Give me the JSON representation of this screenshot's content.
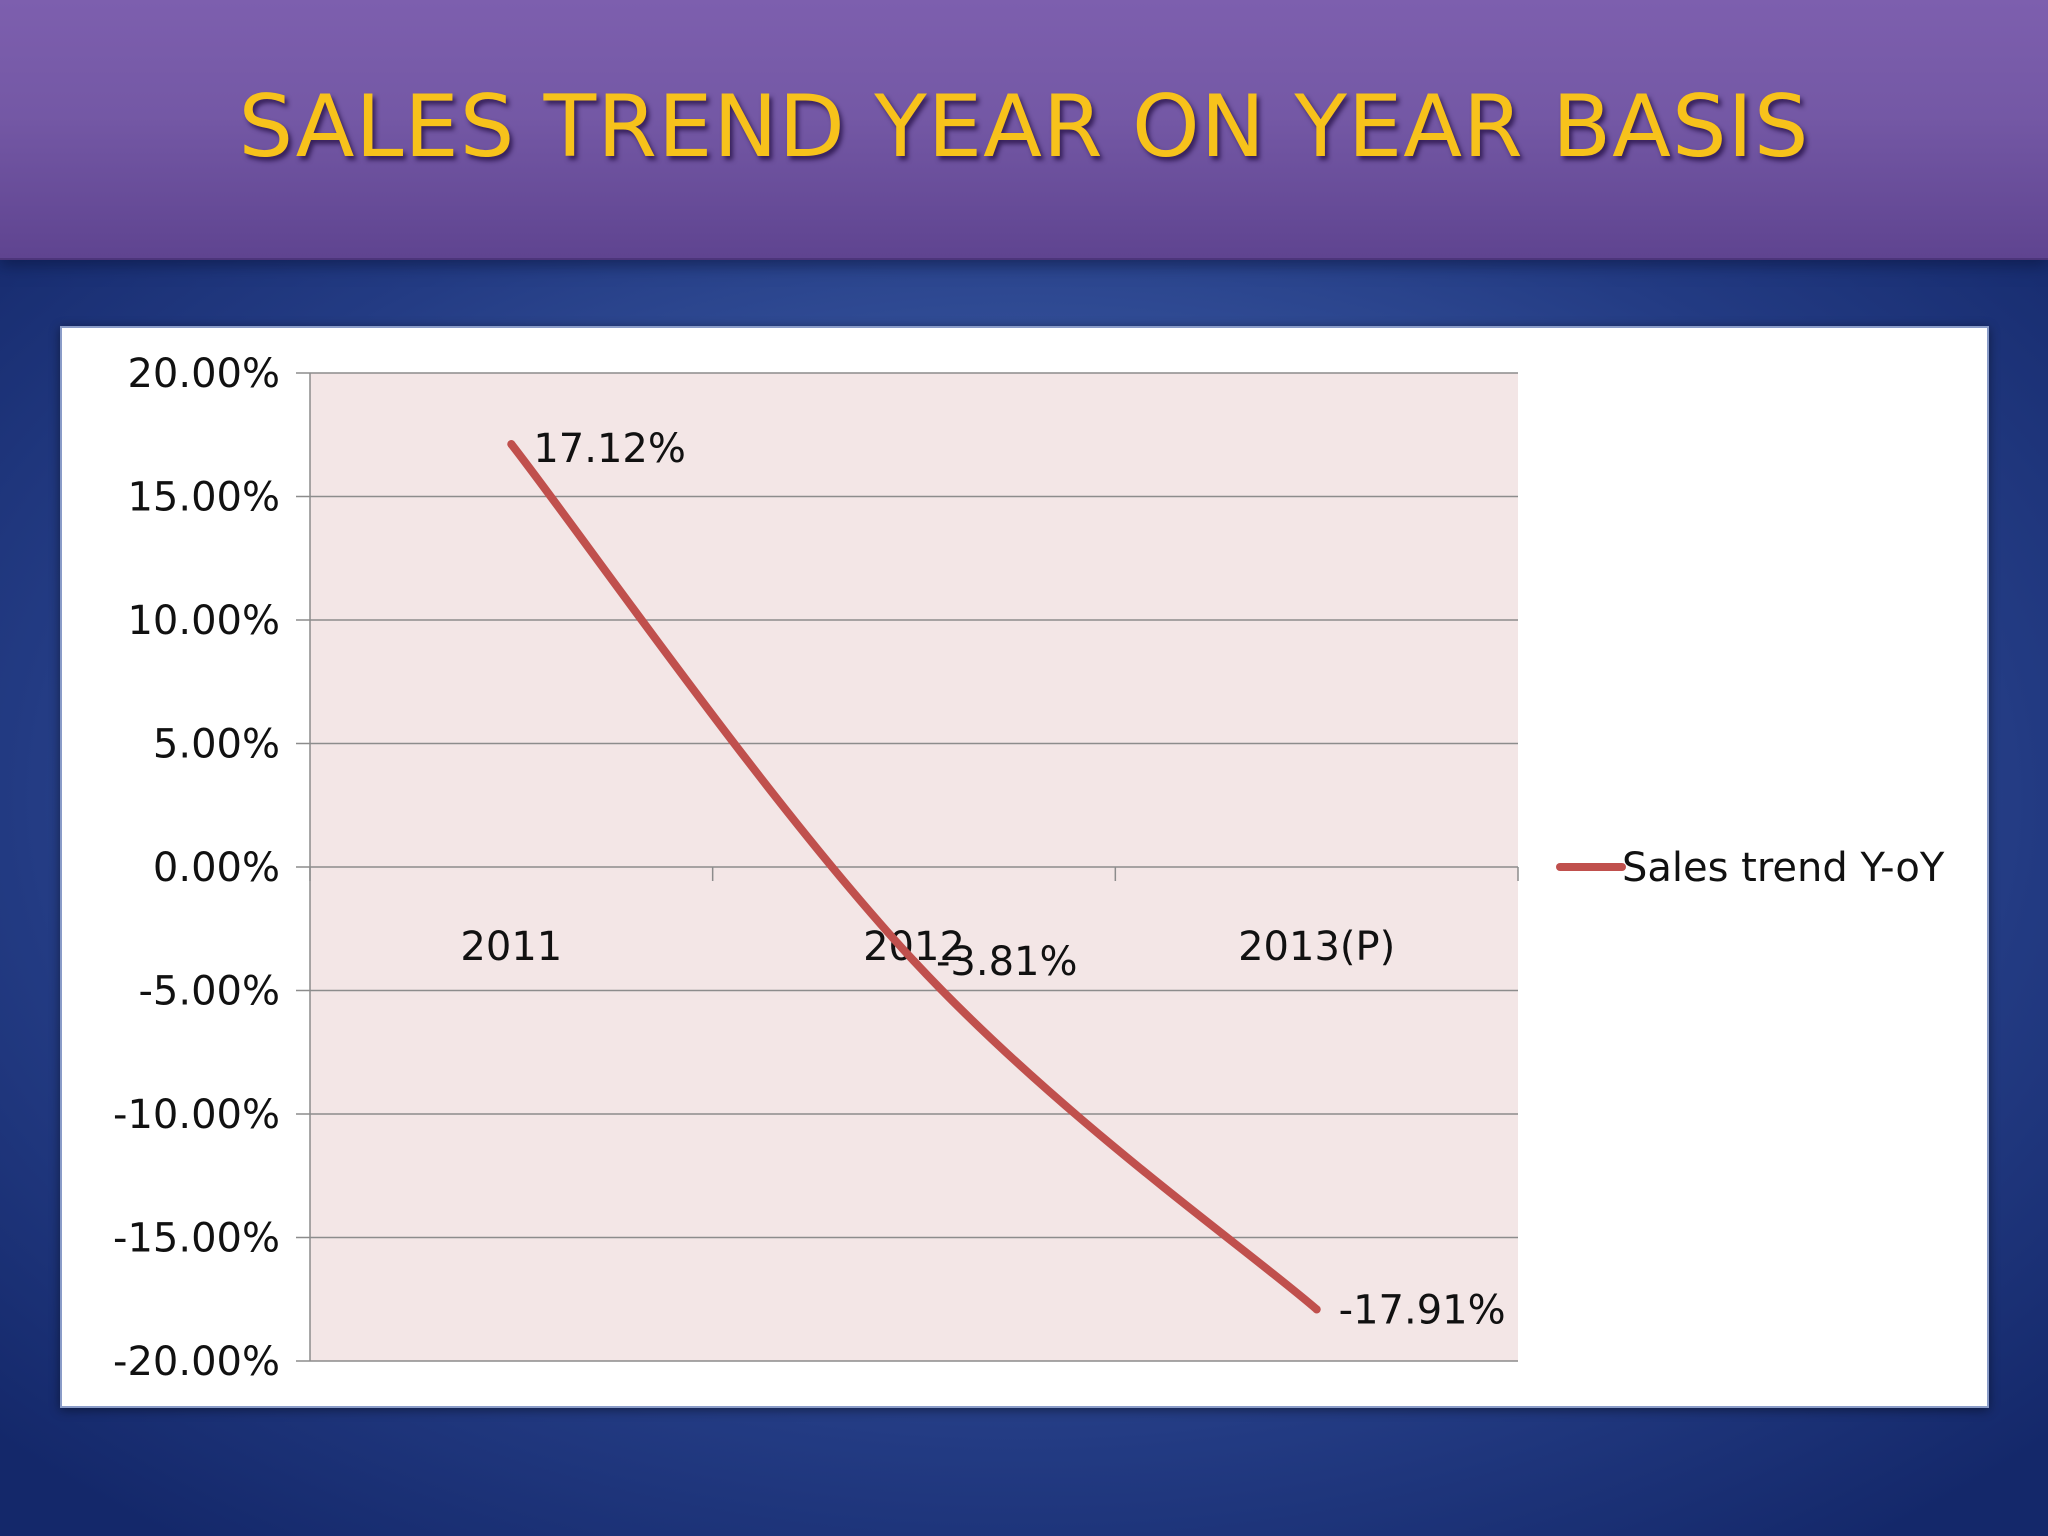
{
  "slide": {
    "title": "SALES TREND YEAR ON YEAR BASIS"
  },
  "colors": {
    "title_text": "#f7c21b",
    "series_line": "#c0504d",
    "plot_area": "#f3e6e6",
    "gridline": "#8c8c8c"
  },
  "chart_data": {
    "type": "line",
    "title": "",
    "xlabel": "",
    "ylabel": "",
    "categories": [
      "2011",
      "2012",
      "2013(P)"
    ],
    "series": [
      {
        "name": "Sales trend Y-oY",
        "values": [
          17.12,
          -3.81,
          -17.91
        ],
        "data_labels": [
          "17.12%",
          "-3.81%",
          "-17.91%"
        ]
      }
    ],
    "ylim": [
      -20,
      20
    ],
    "y_ticks": [
      20,
      15,
      10,
      5,
      0,
      -5,
      -10,
      -15,
      -20
    ],
    "y_tick_labels": [
      "20.00%",
      "15.00%",
      "10.00%",
      "5.00%",
      "0.00%",
      "-5.00%",
      "-10.00%",
      "-15.00%",
      "-20.00%"
    ],
    "grid": true,
    "legend": "right",
    "smooth": true
  }
}
